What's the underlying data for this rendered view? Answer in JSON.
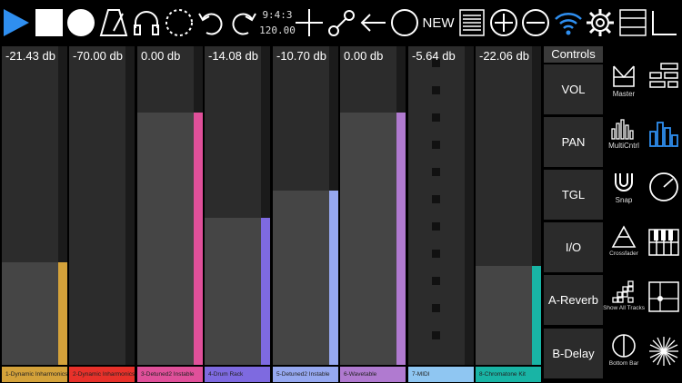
{
  "toolbar": {
    "icons": [
      "play-icon",
      "stop-icon",
      "record-icon",
      "metronome-icon",
      "headphones-icon",
      "loop-icon",
      "undo-icon",
      "redo-icon",
      "time-signature-tempo",
      "add-icon",
      "connect-icon",
      "back-arrow-icon",
      "circle-icon",
      "new-button",
      "list-icon",
      "zoom-in-icon",
      "zoom-out-icon",
      "wifi-icon",
      "settings-icon",
      "layout-icon",
      "corner-icon"
    ],
    "time_signature": "9:4:3",
    "tempo": "120.00",
    "new_label": "NEW",
    "accent": "#2f8ff0"
  },
  "channels": [
    {
      "db": "-21.43 db",
      "name": "1-Dynamic Inharmonics",
      "color": "#d4a23a",
      "level": 0.34
    },
    {
      "db": "-70.00 db",
      "name": "2-Dynamic Inharmonics",
      "color": "#e8312a",
      "level": 0.0
    },
    {
      "db": "0.00 db",
      "name": "3-Detuned2 Instable",
      "color": "#e0509a",
      "level": 0.84
    },
    {
      "db": "-14.08 db",
      "name": "4-Drum Rack",
      "color": "#7e6ae0",
      "level": 0.49
    },
    {
      "db": "-10.70 db",
      "name": "5-Detuned2 Instable",
      "color": "#96a8f0",
      "level": 0.58
    },
    {
      "db": "0.00 db",
      "name": "6-Wavetable",
      "color": "#b07ad0",
      "level": 0.84
    },
    {
      "db": "-5.64 db",
      "name": "7-MIDI",
      "color": "#8fc6f2",
      "level": 0.0
    },
    {
      "db": "-22.06 db",
      "name": "8-Chromatone Kit",
      "color": "#19b4a5",
      "level": 0.33
    }
  ],
  "controls": {
    "header": "Controls",
    "items": [
      "VOL",
      "PAN",
      "TGL",
      "I/O",
      "A-Reverb",
      "B-Delay"
    ]
  },
  "tools": [
    {
      "label": "Master",
      "icon": "master-icon"
    },
    {
      "label": "MultiCntrl",
      "icon": "multi-control-icon"
    },
    {
      "label": "Snap",
      "icon": "snap-magnet-icon"
    },
    {
      "label": "Crossfader",
      "icon": "crossfader-icon"
    },
    {
      "label": "Show All Tracks",
      "icon": "show-all-tracks-icon"
    },
    {
      "label": "Bottom Bar",
      "icon": "bottom-bar-icon"
    }
  ],
  "right_icons": [
    "tracks-layout-icon",
    "mixer-bars-icon",
    "dial-icon",
    "keyboard-icon",
    "xy-pad-icon",
    "burst-icon"
  ]
}
